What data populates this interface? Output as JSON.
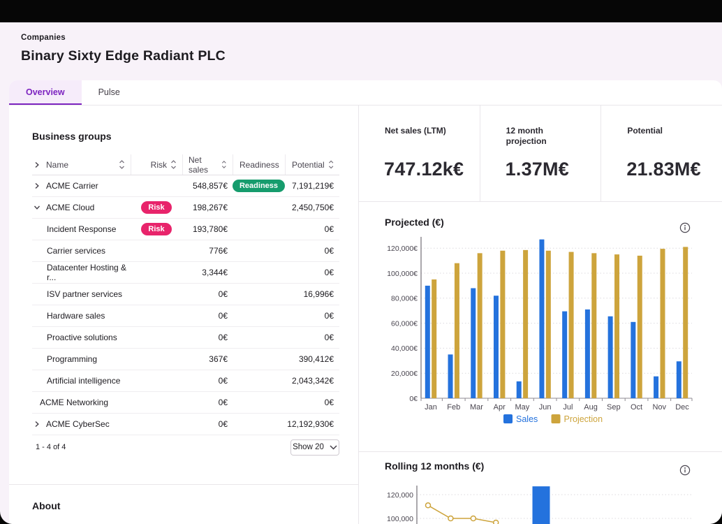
{
  "colors": {
    "accent_purple": "#7d24c0",
    "risk_badge": "#e8246b",
    "readiness_badge": "#169c6d",
    "sales_blue": "#2472dd",
    "projection_gold": "#cda43c"
  },
  "header": {
    "breadcrumb": "Companies",
    "title": "Binary Sixty Edge Radiant PLC"
  },
  "tabs": [
    {
      "label": "Overview",
      "active": true
    },
    {
      "label": "Pulse",
      "active": false
    }
  ],
  "business_groups": {
    "title": "Business groups",
    "columns": [
      "Name",
      "Risk",
      "Net sales",
      "Readiness",
      "Potential"
    ],
    "rows": [
      {
        "name": "ACME Carrier",
        "level": 0,
        "chevron": "right",
        "risk": null,
        "net_sales": "548,857€",
        "readiness": "Readiness",
        "potential": "7,191,219€"
      },
      {
        "name": "ACME Cloud",
        "level": 0,
        "chevron": "down",
        "risk": "Risk",
        "net_sales": "198,267€",
        "readiness": null,
        "potential": "2,450,750€"
      },
      {
        "name": "Incident Response",
        "level": 1,
        "chevron": null,
        "risk": "Risk",
        "net_sales": "193,780€",
        "readiness": null,
        "potential": "0€"
      },
      {
        "name": "Carrier services",
        "level": 1,
        "chevron": null,
        "risk": null,
        "net_sales": "776€",
        "readiness": null,
        "potential": "0€"
      },
      {
        "name": "Datacenter Hosting & r...",
        "level": 1,
        "chevron": null,
        "risk": null,
        "net_sales": "3,344€",
        "readiness": null,
        "potential": "0€"
      },
      {
        "name": "ISV partner services",
        "level": 1,
        "chevron": null,
        "risk": null,
        "net_sales": "0€",
        "readiness": null,
        "potential": "16,996€"
      },
      {
        "name": "Hardware sales",
        "level": 1,
        "chevron": null,
        "risk": null,
        "net_sales": "0€",
        "readiness": null,
        "potential": "0€"
      },
      {
        "name": "Proactive solutions",
        "level": 1,
        "chevron": null,
        "risk": null,
        "net_sales": "0€",
        "readiness": null,
        "potential": "0€"
      },
      {
        "name": "Programming",
        "level": 1,
        "chevron": null,
        "risk": null,
        "net_sales": "367€",
        "readiness": null,
        "potential": "390,412€"
      },
      {
        "name": "Artificial intelligence",
        "level": 1,
        "chevron": null,
        "risk": null,
        "net_sales": "0€",
        "readiness": null,
        "potential": "2,043,342€"
      },
      {
        "name": "ACME Networking",
        "level": 0,
        "chevron": null,
        "risk": null,
        "net_sales": "0€",
        "readiness": null,
        "potential": "0€"
      },
      {
        "name": "ACME CyberSec",
        "level": 0,
        "chevron": "right",
        "risk": null,
        "net_sales": "0€",
        "readiness": null,
        "potential": "12,192,930€"
      }
    ],
    "pagination": {
      "range": "1 - 4 of 4",
      "page_size_label": "Show 20"
    }
  },
  "about": {
    "title": "About"
  },
  "kpis": [
    {
      "label": "Net sales (LTM)",
      "value": "747.12k€"
    },
    {
      "label": "12 month projection",
      "value": "1.37M€"
    },
    {
      "label": "Potential",
      "value": "21.83M€"
    }
  ],
  "chart_data": [
    {
      "type": "bar",
      "title": "Projected (€)",
      "categories": [
        "Jan",
        "Feb",
        "Mar",
        "Apr",
        "May",
        "Jun",
        "Jul",
        "Aug",
        "Sep",
        "Oct",
        "Nov",
        "Dec"
      ],
      "series": [
        {
          "name": "Sales",
          "color_key": "sales_blue",
          "values": [
            90000,
            35000,
            88000,
            82000,
            13500,
            127000,
            69500,
            71000,
            65500,
            61000,
            17500,
            29500
          ]
        },
        {
          "name": "Projection",
          "color_key": "projection_gold",
          "values": [
            95000,
            108000,
            116000,
            118000,
            118500,
            118000,
            117000,
            116000,
            115000,
            114000,
            119500,
            121000
          ]
        }
      ],
      "xlabel": "",
      "ylabel": "",
      "ylim": [
        0,
        130000
      ],
      "ytick_step": 20000,
      "ytick_suffix": "€",
      "grid": true,
      "legend_position": "bottom"
    },
    {
      "type": "mixed",
      "title": "Rolling 12 months (€)",
      "note": "chart partially cut off at bottom edge of viewport",
      "visible_yticks": [
        "120,000",
        "100,000"
      ],
      "ytick_suffix": "",
      "line_series": {
        "color_key": "projection_gold",
        "values": [
          111000,
          100000,
          100000,
          96500
        ]
      },
      "bar_series": {
        "color_key": "sales_blue",
        "x_index": 5,
        "value": 127000
      },
      "grid": true
    }
  ]
}
